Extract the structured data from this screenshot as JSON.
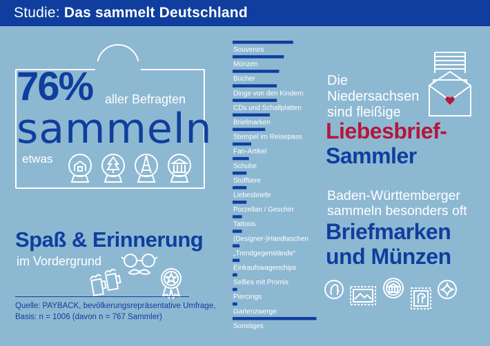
{
  "header": {
    "prefix": "Studie:",
    "title": "Das sammelt Deutschland"
  },
  "left": {
    "percent": "76%",
    "percent_text": "aller Befragten",
    "big_word": "sammeln",
    "small_word": "etwas",
    "tagline": "Spaß & Erinnerung",
    "subline": "im Vordergrund",
    "source_line1": "Quelle: PAYBACK, bevölkerungsrepräsentative Umfrage,",
    "source_line2": "Basis: n = 1006 (davon n = 767 Sammler)"
  },
  "right": {
    "nds_line1": "Die",
    "nds_line2": "Niedersachsen",
    "nds_line3": "sind fleißige",
    "nds_highlight1": "Liebesbrief-",
    "nds_highlight2": "Sammler",
    "bw_line1": "Baden-Württemberger",
    "bw_line2": "sammeln besonders oft",
    "bw_highlight1": "Briefmarken",
    "bw_highlight2": "und Münzen"
  },
  "colors": {
    "primary": "#0f3e9e",
    "accent": "#b5163a",
    "background": "#8db8d2",
    "text_light": "#ffffff"
  },
  "icons": [
    "snow-globe-house-icon",
    "snow-globe-tree-icon",
    "snow-globe-eiffel-icon",
    "snow-globe-temple-icon",
    "beer-mugs-icon",
    "glasses-mustache-icon",
    "medal-star-icon",
    "letter-heart-icon",
    "coin-portrait-icon",
    "stamp-icon",
    "coin-building-icon",
    "stamp-horse-icon",
    "coin-star-icon"
  ],
  "chart_data": {
    "type": "bar",
    "orientation": "horizontal",
    "categories": [
      "Souvenirs",
      "Münzen",
      "Bücher",
      "Dinge von den Kindern",
      "CDs und Schallplatten",
      "Briefmarken",
      "Stempel im Reisepass",
      "Fan-Artikel",
      "Schuhe",
      "Stofftiere",
      "Liebesbriefe",
      "Porzellan / Geschirr",
      "Tattoos",
      "(Designer-)Handtaschen",
      "„Trendgegenstände“",
      "Einkaufswagenchips",
      "Selfies mit Promis",
      "Piercings",
      "Gartenzwerge",
      "Sonstiges"
    ],
    "values": [
      26,
      22,
      20,
      19,
      19,
      16,
      14,
      8,
      7,
      6,
      6,
      6,
      4,
      4,
      3,
      3,
      2,
      2,
      2,
      36
    ],
    "xlim": [
      0,
      40
    ],
    "title": "",
    "xlabel": "",
    "ylabel": ""
  }
}
